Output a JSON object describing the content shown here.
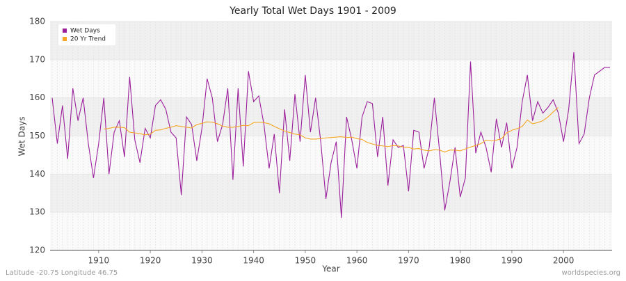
{
  "chart_data": {
    "type": "line",
    "title": "Yearly Total Wet Days 1901 - 2009",
    "x_label": "Year",
    "y_label": "Wet Days",
    "note_left": "Latitude -20.75 Longitude 46.75",
    "note_right": "worldspecies.org",
    "x": [
      1901,
      1902,
      1903,
      1904,
      1905,
      1906,
      1907,
      1908,
      1909,
      1910,
      1911,
      1912,
      1913,
      1914,
      1915,
      1916,
      1917,
      1918,
      1919,
      1920,
      1921,
      1922,
      1923,
      1924,
      1925,
      1926,
      1927,
      1928,
      1929,
      1930,
      1931,
      1932,
      1933,
      1934,
      1935,
      1936,
      1937,
      1938,
      1939,
      1940,
      1941,
      1942,
      1943,
      1944,
      1945,
      1946,
      1947,
      1948,
      1949,
      1950,
      1951,
      1952,
      1953,
      1954,
      1955,
      1956,
      1957,
      1958,
      1959,
      1960,
      1961,
      1962,
      1963,
      1964,
      1965,
      1966,
      1967,
      1968,
      1969,
      1970,
      1971,
      1972,
      1973,
      1974,
      1975,
      1976,
      1977,
      1978,
      1979,
      1980,
      1981,
      1982,
      1983,
      1984,
      1985,
      1986,
      1987,
      1988,
      1989,
      1990,
      1991,
      1992,
      1993,
      1994,
      1995,
      1996,
      1997,
      1998,
      1999,
      2000,
      2001,
      2002,
      2003,
      2004,
      2005,
      2006,
      2007,
      2008,
      2009
    ],
    "series": [
      {
        "name": "Wet Days",
        "color": "#9b1f9b",
        "values": [
          160,
          148,
          158,
          144,
          162.5,
          154,
          160,
          148,
          139,
          148,
          160,
          140,
          151,
          154,
          144.5,
          165.5,
          149,
          143,
          152,
          149.5,
          158,
          159.5,
          157,
          151,
          149.5,
          134.5,
          155,
          153,
          143.5,
          152,
          165,
          160,
          148.5,
          153,
          162.5,
          138.5,
          162.5,
          142,
          167,
          159,
          160.5,
          153,
          141.5,
          150.5,
          135,
          157,
          143.5,
          161,
          148.5,
          166,
          151,
          160,
          148.5,
          133.5,
          143,
          148.5,
          128.5,
          155,
          149,
          141.5,
          155,
          159,
          158.5,
          144.5,
          155,
          137,
          149,
          147,
          147.5,
          135.5,
          151.5,
          151,
          141.5,
          147,
          160,
          146,
          130.5,
          138,
          147,
          134,
          139,
          169.5,
          145.5,
          151,
          147,
          140.5,
          154.5,
          147,
          153.5,
          141.5,
          147,
          159,
          166,
          154,
          159,
          156,
          157.5,
          159.5,
          156,
          148.5,
          157,
          172,
          148,
          150.5,
          160,
          166,
          167,
          168,
          168
        ]
      },
      {
        "name": "20 Yr Trend",
        "color": "#f5a623",
        "values": [
          null,
          null,
          null,
          null,
          null,
          null,
          null,
          null,
          null,
          null,
          151.8,
          152,
          152.3,
          152.3,
          152.2,
          151,
          150.8,
          150.6,
          150.3,
          150.5,
          151.5,
          151.6,
          152,
          152.3,
          152.7,
          152.5,
          152.3,
          152.1,
          153,
          153.3,
          153.7,
          153.6,
          153.2,
          152.6,
          152.3,
          152.3,
          152.5,
          152.8,
          152.7,
          153.5,
          153.6,
          153.5,
          153.2,
          152.5,
          151.9,
          151.3,
          150.9,
          150.5,
          150.3,
          149.5,
          149.2,
          149.2,
          149.3,
          149.5,
          149.6,
          149.7,
          149.8,
          149.6,
          149.7,
          149.3,
          149.1,
          148.3,
          147.9,
          147.5,
          147.4,
          147.2,
          147.5,
          147.4,
          147.1,
          147,
          146.6,
          146.7,
          146.3,
          146.1,
          146.4,
          146.3,
          145.8,
          146.3,
          146.3,
          146.1,
          146.6,
          147.1,
          147.5,
          148,
          148.9,
          148.7,
          148.9,
          149.3,
          150.8,
          151.5,
          151.9,
          152.5,
          154.2,
          153.2,
          153.5,
          154,
          155,
          156.3,
          157.5,
          null,
          null,
          null,
          null,
          null,
          null,
          null,
          null,
          null,
          null
        ]
      }
    ],
    "xlim": [
      1901,
      2009
    ],
    "xticks": [
      1910,
      1920,
      1930,
      1940,
      1950,
      1960,
      1970,
      1980,
      1990,
      2000
    ],
    "ylim": [
      120,
      180
    ],
    "yticks": [
      120,
      130,
      140,
      150,
      160,
      170,
      180
    ],
    "grid": true,
    "legend": "top-left"
  }
}
